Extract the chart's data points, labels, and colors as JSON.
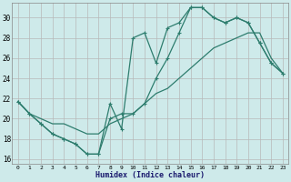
{
  "xlabel": "Humidex (Indice chaleur)",
  "bg_color": "#ceeaea",
  "grid_color": "#b8b8b8",
  "line_color": "#2e7d6e",
  "xlim": [
    -0.5,
    23.5
  ],
  "ylim": [
    15.5,
    31.5
  ],
  "xticks": [
    0,
    1,
    2,
    3,
    4,
    5,
    6,
    7,
    8,
    9,
    10,
    11,
    12,
    13,
    14,
    15,
    16,
    17,
    18,
    19,
    20,
    21,
    22,
    23
  ],
  "yticks": [
    16,
    18,
    20,
    22,
    24,
    26,
    28,
    30
  ],
  "line1_x": [
    0,
    1,
    2,
    3,
    4,
    5,
    6,
    7,
    8,
    9,
    10,
    11,
    12,
    13,
    14,
    15,
    16,
    17,
    18,
    19,
    20,
    21,
    22,
    23
  ],
  "line1_y": [
    21.7,
    20.5,
    19.5,
    18.5,
    18.0,
    17.5,
    16.5,
    16.5,
    21.5,
    19.0,
    28.0,
    28.5,
    25.5,
    29.0,
    29.5,
    31.0,
    31.0,
    30.0,
    29.5,
    30.0,
    29.5,
    27.5,
    25.5,
    24.5
  ],
  "line1_markers": [
    0,
    1,
    2,
    3,
    4,
    5,
    6,
    7,
    8,
    9,
    10,
    11,
    12,
    13,
    14,
    15,
    16,
    17,
    18,
    19,
    20,
    21,
    22,
    23
  ],
  "line2_x": [
    0,
    1,
    2,
    3,
    4,
    5,
    6,
    7,
    8,
    9,
    10,
    11,
    12,
    13,
    14,
    15,
    16,
    17,
    18,
    19,
    20,
    21,
    22,
    23
  ],
  "line2_y": [
    21.7,
    20.5,
    19.5,
    18.5,
    18.0,
    17.5,
    16.5,
    16.5,
    20.0,
    20.5,
    20.5,
    21.5,
    24.0,
    26.0,
    28.5,
    31.0,
    31.0,
    30.0,
    29.5,
    30.0,
    29.5,
    27.5,
    25.5,
    24.5
  ],
  "line3_x": [
    0,
    1,
    2,
    3,
    4,
    5,
    6,
    7,
    8,
    9,
    10,
    11,
    12,
    13,
    14,
    15,
    16,
    17,
    18,
    19,
    20,
    21,
    22,
    23
  ],
  "line3_y": [
    21.7,
    20.5,
    20.0,
    19.5,
    19.5,
    19.0,
    18.5,
    18.5,
    19.5,
    20.0,
    20.5,
    21.5,
    22.5,
    23.0,
    24.0,
    25.0,
    26.0,
    27.0,
    27.5,
    28.0,
    28.5,
    28.5,
    26.0,
    24.5
  ]
}
